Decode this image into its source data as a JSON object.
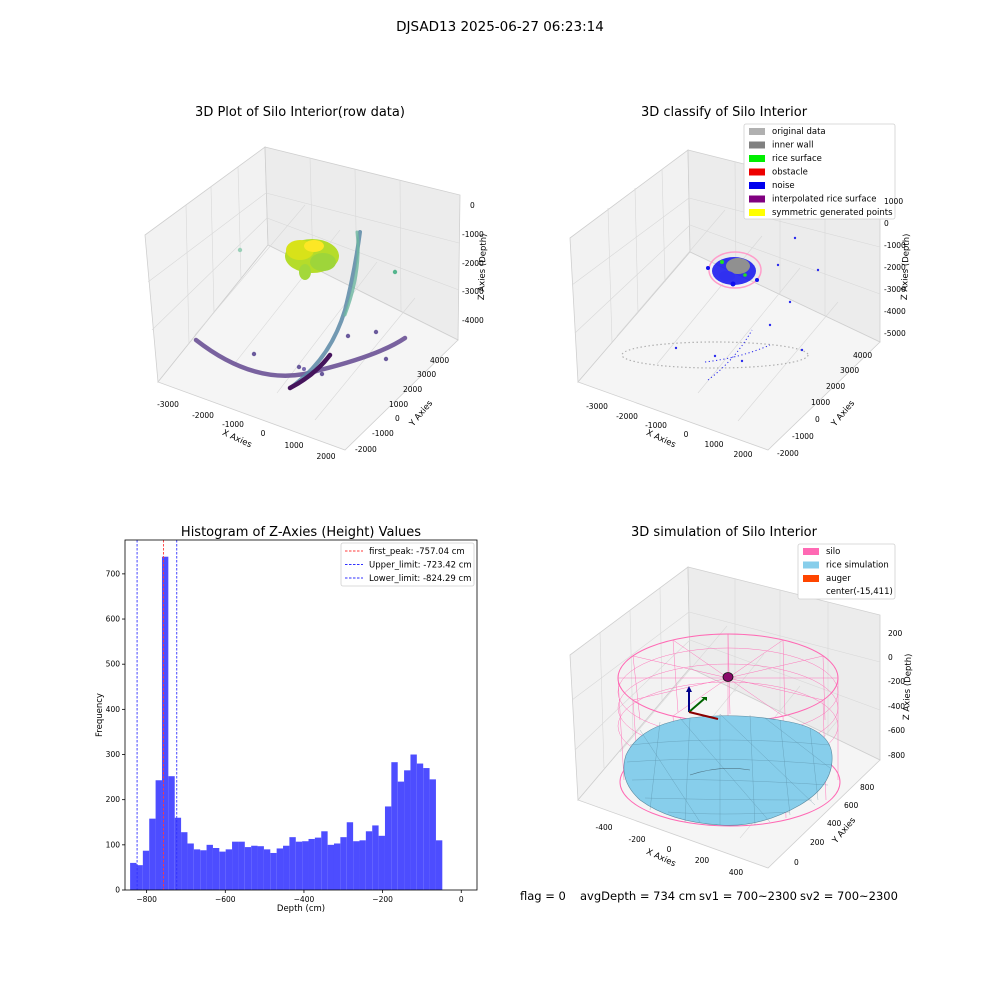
{
  "suptitle": "DJSAD13 2025-06-27 06:23:14",
  "status": {
    "flag": "flag = 0",
    "avg_depth": "avgDepth = 734 cm",
    "sv1": "sv1 = 700~2300",
    "sv2": "sv2 = 700~2300"
  },
  "chart_data": [
    {
      "type": "scatter",
      "title": "3D Plot of Silo Interior(row data)",
      "xlabel": "X Axies",
      "ylabel": "Y Axies",
      "zlabel": "Z Axies (Depth)",
      "x_ticks": [
        "-3000",
        "-2000",
        "-1000",
        "0",
        "1000",
        "2000"
      ],
      "y_ticks": [
        "-2000",
        "-1000",
        "0",
        "1000",
        "2000",
        "3000",
        "4000"
      ],
      "z_ticks": [
        "0",
        "-1000",
        "-2000",
        "-3000",
        "-4000"
      ],
      "colormap": "viridis"
    },
    {
      "type": "scatter",
      "title": "3D classify of Silo Interior",
      "xlabel": "X Axies",
      "ylabel": "Y Axies",
      "zlabel": "Z Axies (Depth)",
      "x_ticks": [
        "-3000",
        "-2000",
        "-1000",
        "0",
        "1000",
        "2000"
      ],
      "y_ticks": [
        "-2000",
        "-1000",
        "0",
        "1000",
        "2000",
        "3000",
        "4000"
      ],
      "z_ticks": [
        "1000",
        "0",
        "-1000",
        "-2000",
        "-3000",
        "-4000",
        "-5000"
      ],
      "legend": [
        {
          "label": "original data",
          "color": "#b0b0b0"
        },
        {
          "label": "inner wall",
          "color": "#808080"
        },
        {
          "label": "rice surface",
          "color": "#00ee00"
        },
        {
          "label": "obstacle",
          "color": "#ee0000"
        },
        {
          "label": "noise",
          "color": "#0000ee"
        },
        {
          "label": "interpolated rice surface",
          "color": "#800080"
        },
        {
          "label": "symmetric generated points",
          "color": "#ffff00"
        }
      ]
    },
    {
      "type": "bar",
      "title": "Histogram of Z-Axies (Height) Values",
      "xlabel": "Depth (cm)",
      "ylabel": "Frequency",
      "xlim": [
        -855,
        40
      ],
      "ylim": [
        0,
        775
      ],
      "x_ticks": [
        -800,
        -600,
        -400,
        -200,
        0
      ],
      "x_tick_labels": [
        "−800",
        "−600",
        "−400",
        "−200",
        "0"
      ],
      "y_ticks": [
        0,
        100,
        200,
        300,
        400,
        500,
        600,
        700
      ],
      "y_tick_labels": [
        "0",
        "100",
        "200",
        "300",
        "400",
        "500",
        "600",
        "700"
      ],
      "bin_start": -842,
      "bin_width": 16.2,
      "values": [
        60,
        55,
        87,
        158,
        243,
        738,
        252,
        160,
        128,
        103,
        90,
        88,
        100,
        93,
        85,
        90,
        107,
        107,
        95,
        98,
        97,
        90,
        82,
        92,
        98,
        117,
        107,
        108,
        113,
        116,
        130,
        100,
        103,
        117,
        150,
        108,
        110,
        130,
        143,
        120,
        185,
        283,
        240,
        265,
        300,
        280,
        270,
        245,
        110
      ],
      "bar_color": "#4d4dff",
      "lines": [
        {
          "label": "first_peak: -757.04 cm",
          "x": -757.04,
          "color": "#ff3b3b"
        },
        {
          "label": "Upper_limit: -723.42 cm",
          "x": -723.42,
          "color": "#3030ff"
        },
        {
          "label": "Lower_limit: -824.29 cm",
          "x": -824.29,
          "color": "#3030ff"
        }
      ]
    },
    {
      "type": "area",
      "title": "3D simulation of Silo Interior",
      "xlabel": "X Axies",
      "ylabel": "Y Axies",
      "zlabel": "Z Axies (Depth)",
      "x_ticks": [
        "-400",
        "-200",
        "0",
        "200",
        "400"
      ],
      "y_ticks": [
        "0",
        "200",
        "400",
        "600",
        "800"
      ],
      "z_ticks": [
        "200",
        "0",
        "-200",
        "-400",
        "-600",
        "-800"
      ],
      "legend": [
        {
          "label": "silo",
          "color": "#ff69b4"
        },
        {
          "label": "rice simulation",
          "color": "#87ceeb"
        },
        {
          "label": "auger",
          "color": "#ff4500"
        },
        {
          "label": "center(-15,411)",
          "color": ""
        }
      ]
    }
  ]
}
